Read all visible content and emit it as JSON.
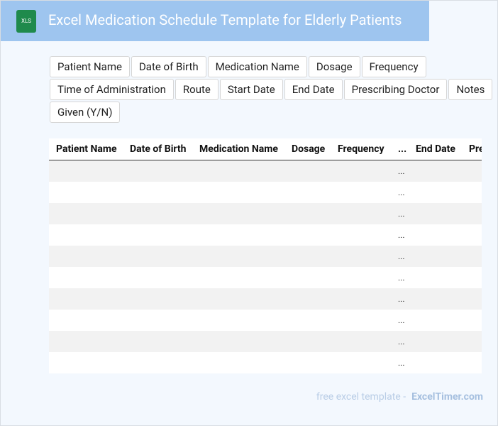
{
  "header": {
    "icon": "XLS",
    "title": "Excel Medication Schedule Template for Elderly Patients"
  },
  "tags": [
    "Patient Name",
    "Date of Birth",
    "Medication Name",
    "Dosage",
    "Frequency",
    "Time of Administration",
    "Route",
    "Start Date",
    "End Date",
    "Prescribing Doctor",
    "Notes",
    "Given (Y/N)"
  ],
  "table": {
    "columns": [
      "Patient Name",
      "Date of Birth",
      "Medication Name",
      "Dosage",
      "Frequency",
      "...",
      "End Date",
      "Prescribing Doctor"
    ],
    "rows": [
      "...",
      "...",
      "...",
      "...",
      "...",
      "...",
      "...",
      "...",
      "...",
      "..."
    ]
  },
  "footer": {
    "text": "free excel template -",
    "brand": "ExcelTimer.com"
  }
}
